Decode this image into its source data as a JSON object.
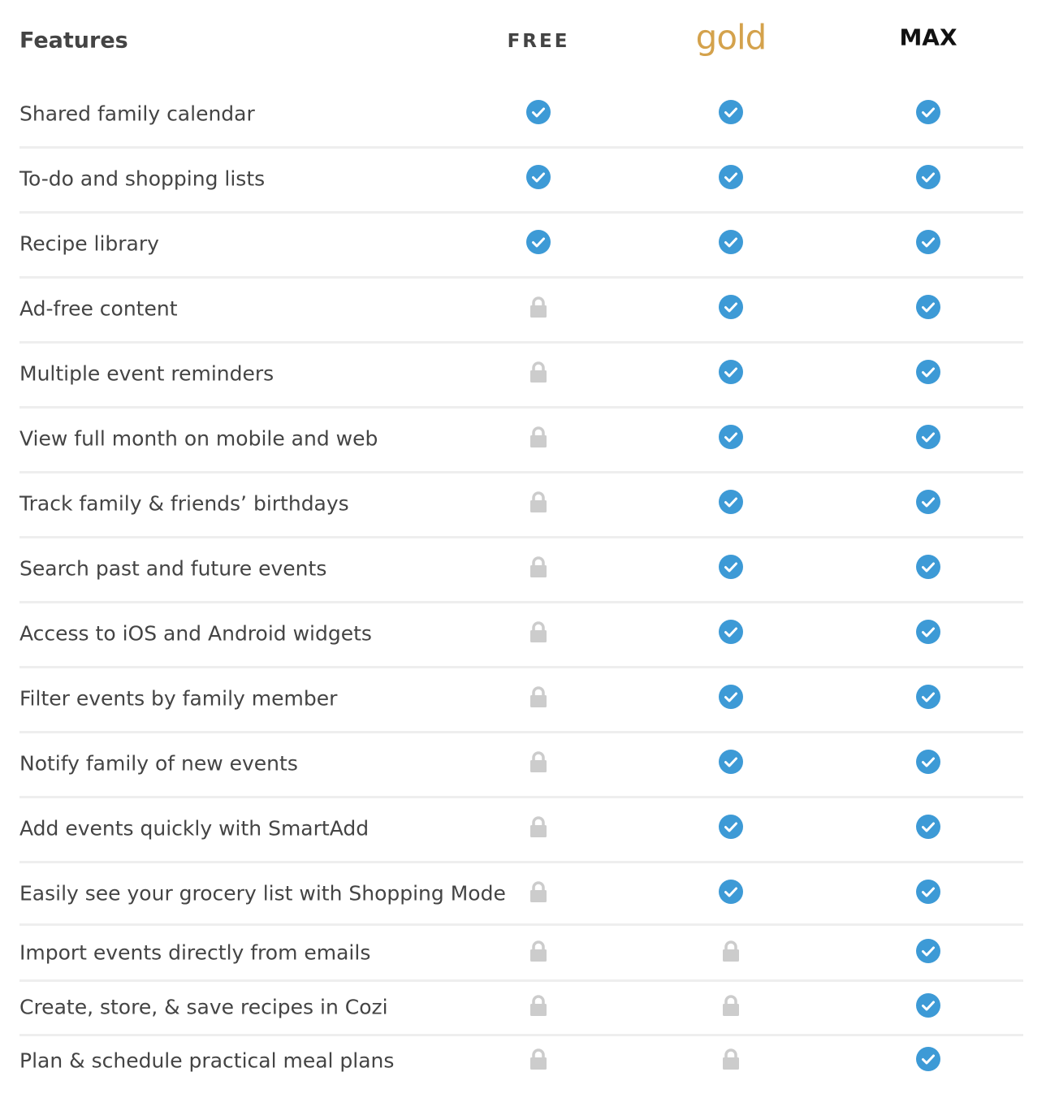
{
  "header": {
    "features": "Features",
    "plans": [
      "FREE",
      "gold",
      "MAX"
    ]
  },
  "rows": [
    {
      "feature": "Shared family calendar",
      "available": [
        true,
        true,
        true
      ]
    },
    {
      "feature": "To-do and shopping lists",
      "available": [
        true,
        true,
        true
      ]
    },
    {
      "feature": "Recipe library",
      "available": [
        true,
        true,
        true
      ]
    },
    {
      "feature": "Ad-free content",
      "available": [
        false,
        true,
        true
      ]
    },
    {
      "feature": "Multiple event reminders",
      "available": [
        false,
        true,
        true
      ]
    },
    {
      "feature": "View full month on mobile and web",
      "available": [
        false,
        true,
        true
      ]
    },
    {
      "feature": "Track family & friends’ birthdays",
      "available": [
        false,
        true,
        true
      ]
    },
    {
      "feature": "Search past and future events",
      "available": [
        false,
        true,
        true
      ]
    },
    {
      "feature": "Access to iOS and Android widgets",
      "available": [
        false,
        true,
        true
      ]
    },
    {
      "feature": "Filter events by family member",
      "available": [
        false,
        true,
        true
      ]
    },
    {
      "feature": "Notify family of new events",
      "available": [
        false,
        true,
        true
      ]
    },
    {
      "feature": "Add events quickly with SmartAdd",
      "available": [
        false,
        true,
        true
      ]
    },
    {
      "feature": "Easily see your grocery list with Shopping Mode",
      "available": [
        false,
        true,
        true
      ]
    },
    {
      "feature": "Import events directly from emails",
      "available": [
        false,
        false,
        true
      ]
    },
    {
      "feature": "Create, store, & save recipes in Cozi",
      "available": [
        false,
        false,
        true
      ]
    },
    {
      "feature": "Plan & schedule practical meal plans",
      "available": [
        false,
        false,
        true
      ]
    }
  ]
}
